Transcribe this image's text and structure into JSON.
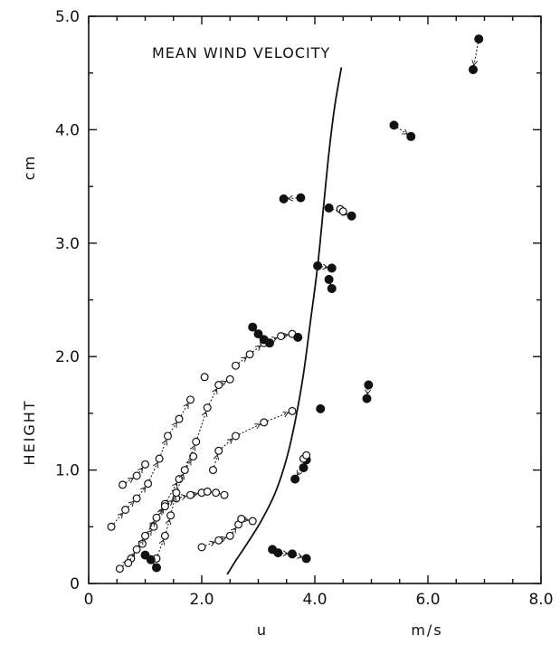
{
  "chart_data": {
    "type": "scatter",
    "title": "MEAN WIND VELOCITY",
    "xlabel": "u",
    "x_unit": "m/s",
    "ylabel": "HEIGHT",
    "y_unit": "cm",
    "xlim": [
      0,
      8
    ],
    "ylim": [
      0,
      5
    ],
    "x_ticks": [
      "0",
      "2.0",
      "4.0",
      "6.0",
      "8.0"
    ],
    "y_ticks": [
      "0",
      "1.0",
      "2.0",
      "3.0",
      "4.0",
      "5.0"
    ],
    "grid": false,
    "legend": "none",
    "mean_wind_profile": [
      [
        2.45,
        0.08
      ],
      [
        2.6,
        0.2
      ],
      [
        2.8,
        0.35
      ],
      [
        3.05,
        0.55
      ],
      [
        3.3,
        0.8
      ],
      [
        3.5,
        1.1
      ],
      [
        3.66,
        1.45
      ],
      [
        3.8,
        1.85
      ],
      [
        3.92,
        2.3
      ],
      [
        4.05,
        2.8
      ],
      [
        4.15,
        3.3
      ],
      [
        4.25,
        3.8
      ],
      [
        4.35,
        4.2
      ],
      [
        4.47,
        4.55
      ]
    ],
    "trajectories": [
      {
        "marker": "open",
        "points": [
          [
            0.55,
            0.13
          ],
          [
            0.75,
            0.22
          ],
          [
            0.95,
            0.35
          ],
          [
            1.15,
            0.5
          ],
          [
            1.35,
            0.7
          ],
          [
            1.6,
            0.92
          ],
          [
            1.85,
            1.12
          ]
        ]
      },
      {
        "marker": "open",
        "points": [
          [
            0.4,
            0.5
          ],
          [
            0.65,
            0.65
          ],
          [
            0.85,
            0.75
          ],
          [
            1.05,
            0.88
          ],
          [
            1.25,
            1.1
          ],
          [
            1.4,
            1.3
          ],
          [
            1.6,
            1.45
          ],
          [
            1.8,
            1.62
          ]
        ]
      },
      {
        "marker": "open",
        "points": [
          [
            0.6,
            0.87
          ],
          [
            0.85,
            0.95
          ],
          [
            1.0,
            1.05
          ]
        ]
      },
      {
        "marker": "open",
        "points": [
          [
            0.7,
            0.18
          ],
          [
            0.85,
            0.3
          ],
          [
            1.0,
            0.42
          ],
          [
            1.2,
            0.58
          ],
          [
            1.35,
            0.68
          ],
          [
            1.55,
            0.75
          ],
          [
            1.8,
            0.78
          ],
          [
            2.0,
            0.8
          ],
          [
            2.1,
            0.81
          ],
          [
            2.25,
            0.8
          ],
          [
            2.4,
            0.78
          ]
        ]
      },
      {
        "marker": "open",
        "points": [
          [
            1.2,
            0.22
          ],
          [
            1.35,
            0.42
          ],
          [
            1.45,
            0.6
          ],
          [
            1.55,
            0.8
          ],
          [
            1.7,
            1.0
          ],
          [
            1.9,
            1.25
          ],
          [
            2.1,
            1.55
          ],
          [
            2.3,
            1.75
          ],
          [
            2.5,
            1.8
          ]
        ]
      },
      {
        "marker": "open",
        "points": [
          [
            2.05,
            1.82
          ]
        ]
      },
      {
        "marker": "open",
        "points": [
          [
            2.2,
            1.0
          ],
          [
            2.3,
            1.17
          ],
          [
            2.6,
            1.3
          ],
          [
            3.1,
            1.42
          ],
          [
            3.6,
            1.52
          ]
        ]
      },
      {
        "marker": "filled",
        "points": [
          [
            4.1,
            1.54
          ]
        ]
      },
      {
        "marker": "open",
        "points": [
          [
            2.6,
            1.92
          ],
          [
            2.85,
            2.02
          ],
          [
            3.1,
            2.12
          ],
          [
            3.4,
            2.18
          ],
          [
            3.6,
            2.2
          ]
        ]
      },
      {
        "marker": "filled",
        "points": [
          [
            3.7,
            2.17
          ]
        ]
      },
      {
        "marker": "open",
        "points": [
          [
            2.0,
            0.32
          ],
          [
            2.3,
            0.38
          ],
          [
            2.5,
            0.42
          ],
          [
            2.65,
            0.52
          ]
        ]
      },
      {
        "marker": "open",
        "points": [
          [
            2.7,
            0.57
          ],
          [
            2.9,
            0.55
          ]
        ]
      },
      {
        "marker": "filled",
        "points": [
          [
            2.9,
            2.26
          ],
          [
            3.0,
            2.2
          ],
          [
            3.1,
            2.15
          ],
          [
            3.2,
            2.12
          ]
        ]
      },
      {
        "marker": "filled",
        "points": [
          [
            1.0,
            0.25
          ],
          [
            1.1,
            0.21
          ],
          [
            1.2,
            0.14
          ]
        ]
      },
      {
        "marker": "filled",
        "points": [
          [
            3.25,
            0.3
          ],
          [
            3.35,
            0.27
          ],
          [
            3.6,
            0.26
          ],
          [
            3.85,
            0.22
          ]
        ]
      },
      {
        "marker": "filled",
        "points": [
          [
            3.8,
            1.02
          ],
          [
            3.85,
            1.09
          ],
          [
            3.65,
            0.92
          ]
        ]
      },
      {
        "marker": "open",
        "points": [
          [
            3.8,
            1.1
          ],
          [
            3.85,
            1.13
          ]
        ]
      },
      {
        "marker": "filled",
        "points": [
          [
            4.05,
            2.8
          ],
          [
            4.3,
            2.78
          ]
        ]
      },
      {
        "marker": "filled",
        "points": [
          [
            4.25,
            2.68
          ],
          [
            4.3,
            2.6
          ]
        ]
      },
      {
        "marker": "filled",
        "points": [
          [
            4.25,
            3.31
          ],
          [
            4.65,
            3.24
          ]
        ]
      },
      {
        "marker": "open",
        "points": [
          [
            4.45,
            3.3
          ],
          [
            4.5,
            3.28
          ]
        ]
      },
      {
        "marker": "filled",
        "points": [
          [
            3.75,
            3.4
          ],
          [
            3.45,
            3.39
          ]
        ]
      },
      {
        "marker": "filled",
        "points": [
          [
            4.95,
            1.75
          ],
          [
            4.92,
            1.63
          ]
        ]
      },
      {
        "marker": "filled",
        "points": [
          [
            5.4,
            4.04
          ],
          [
            5.7,
            3.94
          ]
        ]
      },
      {
        "marker": "filled",
        "points": [
          [
            6.9,
            4.8
          ],
          [
            6.8,
            4.53
          ]
        ]
      }
    ]
  }
}
